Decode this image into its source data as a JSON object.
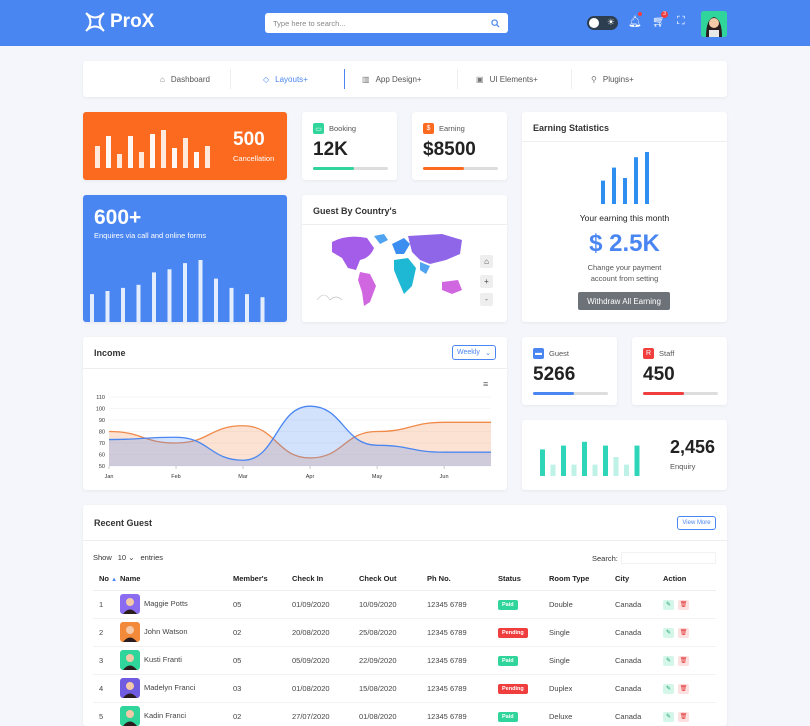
{
  "app": {
    "name": "ProX"
  },
  "search": {
    "placeholder": "Type here to search..."
  },
  "header": {
    "cart_badge": "3"
  },
  "nav": [
    {
      "label": "Dashboard",
      "icon": "home-icon"
    },
    {
      "label": "Layouts",
      "icon": "diamond-icon"
    },
    {
      "label": "App Design",
      "icon": "grid-icon"
    },
    {
      "label": "UI Elements",
      "icon": "box-icon"
    },
    {
      "label": "Plugins",
      "icon": "plug-icon"
    }
  ],
  "cancel": {
    "value": "500",
    "label": "Cancellation",
    "bars": [
      0.55,
      0.8,
      0.35,
      0.8,
      0.4,
      0.85,
      0.95,
      0.5,
      0.75,
      0.4,
      0.55
    ]
  },
  "booking": {
    "label": "Booking",
    "value": "12K",
    "progress": 0.55,
    "color": "#2fd59a"
  },
  "earning": {
    "label": "Earning",
    "value": "$8500",
    "progress": 0.55,
    "color": "#fc6a1f"
  },
  "enquiry_card": {
    "value": "600+",
    "label": "Enquires via call and online forms",
    "bars": [
      0.45,
      0.5,
      0.55,
      0.6,
      0.8,
      0.85,
      0.95,
      1.0,
      0.7,
      0.55,
      0.45,
      0.4
    ]
  },
  "country": {
    "title": "Guest By Country's"
  },
  "earning_stats": {
    "title": "Earning Statistics",
    "subtitle": "Your earning this month",
    "amount": "$ 2.5K",
    "note": "Change your payment account from setting",
    "button": "Withdraw All Earning",
    "bars": [
      0.45,
      0.7,
      0.5,
      0.9,
      1.0
    ]
  },
  "income": {
    "title": "Income",
    "select": "Weekly",
    "y_ticks": [
      "110",
      "100",
      "90",
      "80",
      "70",
      "60",
      "50"
    ],
    "x_ticks": [
      "Jan",
      "Feb",
      "Mar",
      "Apr",
      "May",
      "Jun"
    ]
  },
  "chart_data": {
    "type": "area",
    "x": [
      "Jan",
      "Feb",
      "Mar",
      "Apr",
      "May",
      "Jun"
    ],
    "ylim": [
      50,
      110
    ],
    "series": [
      {
        "values": [
          80,
          70,
          85,
          57,
          80,
          88
        ]
      },
      {
        "values": [
          73,
          75,
          55,
          102,
          68,
          62
        ]
      }
    ]
  },
  "guest": {
    "label": "Guest",
    "value": "5266",
    "progress": 0.55,
    "color": "#4a86f2"
  },
  "staff": {
    "label": "Staff",
    "value": "450",
    "progress": 0.55,
    "color": "#f03e3e"
  },
  "enquiry": {
    "value": "2,456",
    "label": "Enquiry",
    "bars": [
      0.7,
      0.3,
      0.8,
      0.3,
      0.9,
      0.3,
      0.8,
      0.5,
      0.3,
      0.8
    ]
  },
  "recent": {
    "title": "Recent Guest",
    "view_more": "View More",
    "show": "Show",
    "entries_val": "10",
    "entries": "entries",
    "search_label": "Search:",
    "columns": [
      "No",
      "Name",
      "Member's",
      "Check In",
      "Check Out",
      "Ph No.",
      "Status",
      "Room Type",
      "City",
      "Action"
    ],
    "rows": [
      {
        "no": "1",
        "name": "Maggie Potts",
        "members": "05",
        "in": "01/09/2020",
        "out": "10/09/2020",
        "ph": "12345 6789",
        "status": "Paid",
        "room": "Double",
        "city": "Canada",
        "av": "#8b6cf0"
      },
      {
        "no": "2",
        "name": "John Watson",
        "members": "02",
        "in": "20/08/2020",
        "out": "25/08/2020",
        "ph": "12345 6789",
        "status": "Pending",
        "room": "Single",
        "city": "Canada",
        "av": "#f28a3a"
      },
      {
        "no": "3",
        "name": "Kusti Franti",
        "members": "05",
        "in": "05/09/2020",
        "out": "22/09/2020",
        "ph": "12345 6789",
        "status": "Paid",
        "room": "Single",
        "city": "Canada",
        "av": "#2fd59a"
      },
      {
        "no": "4",
        "name": "Madelyn Franci",
        "members": "03",
        "in": "01/08/2020",
        "out": "15/08/2020",
        "ph": "12345 6789",
        "status": "Pending",
        "room": "Duplex",
        "city": "Canada",
        "av": "#6f5ce0"
      },
      {
        "no": "5",
        "name": "Kadin Franci",
        "members": "02",
        "in": "27/07/2020",
        "out": "01/08/2020",
        "ph": "12345 6789",
        "status": "Paid",
        "room": "Deluxe",
        "city": "Canada",
        "av": "#2fd59a"
      }
    ]
  }
}
